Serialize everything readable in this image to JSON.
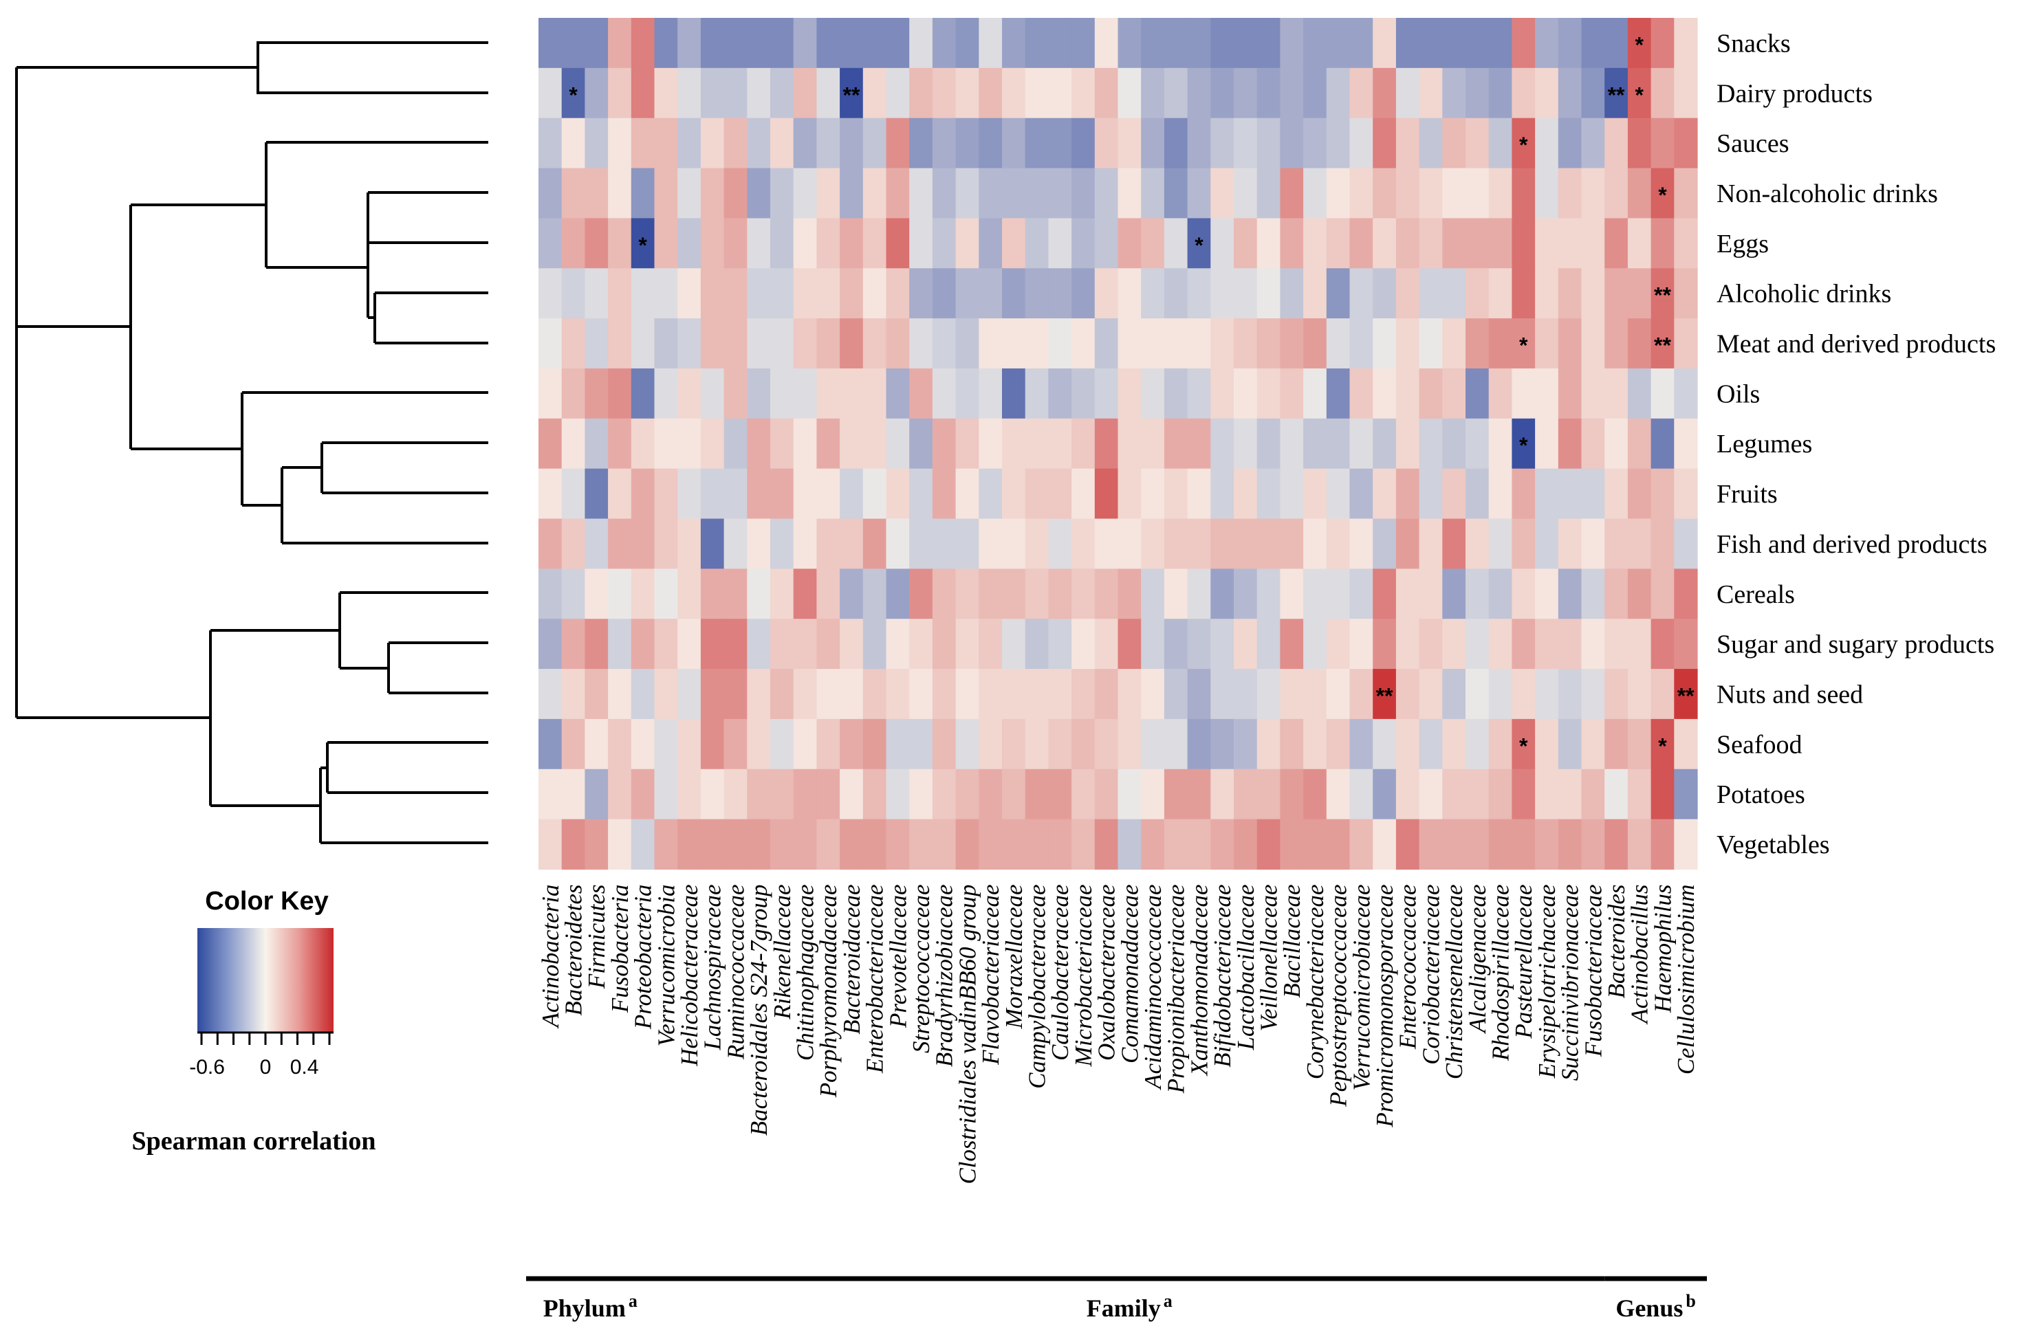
{
  "chart_data": {
    "type": "heatmap",
    "title": "",
    "rows": [
      "Snacks",
      "Dairy products",
      "Sauces",
      "Non-alcoholic drinks",
      "Eggs",
      "Alcoholic drinks",
      "Meat and derived products",
      "Oils",
      "Legumes",
      "Fruits",
      "Fish and derived products",
      "Cereals",
      "Sugar and sugary products",
      "Nuts and seed",
      "Seafood",
      "Potatoes",
      "Vegetables"
    ],
    "columns": [
      "Actinobacteria",
      "Bacteroidetes",
      "Firmicutes",
      "Fusobacteria",
      "Proteobacteria",
      "Verrucomicrobia",
      "Helicobacteraceae",
      "Lachnospiraceae",
      "Ruminococcaceae",
      "Bacteroidales S24-7group",
      "Rikenellaceae",
      "Chitinophagaceae",
      "Porphyromonadaceae",
      "Bacteroidaceae",
      "Enterobacteriaceae",
      "Prevotellaceae",
      "Streptococcaceae",
      "Bradyrhizobiaceae",
      "Clostridiales vadinBB60 group",
      "Flavobacteriaceae",
      "Moraxellaceae",
      "Campylobacteraceae",
      "Caulobacteraceae",
      "Microbacteriaceae",
      "Oxalobacteraceae",
      "Comamonadaceae",
      "Acidaminococcaceae",
      "Propionibacteriaceae",
      "Xanthomonadaceae",
      "Bifidobacteriaceae",
      "Lactobacillaceae",
      "Veillonellaceae",
      "Bacillaceae",
      "Corynebacteriaceae",
      "Peptostreptococcaceae",
      "Verrucomicrobiaceae",
      "Promicromonosporaceae",
      "Enterococcaceae",
      "Coriobacteriaceae",
      "Christensenellaceae",
      "Alcaligenaceae",
      "Rhodospirillaceae",
      "Pasteurellaceae",
      "Erysipelotrichaceae",
      "Succinivibrionaceae",
      "Fusobacteriaceae",
      "Bacteroides",
      "Actinobacillus",
      "Haemophilus",
      "Cellulosimicrobium"
    ],
    "values": [
      [
        -0.45,
        -0.45,
        -0.45,
        0.25,
        0.4,
        -0.45,
        -0.3,
        -0.45,
        -0.45,
        -0.45,
        -0.45,
        -0.3,
        -0.45,
        -0.45,
        -0.45,
        -0.45,
        -0.1,
        -0.35,
        -0.4,
        -0.1,
        -0.35,
        -0.4,
        -0.4,
        -0.4,
        0.05,
        -0.35,
        -0.4,
        -0.4,
        -0.4,
        -0.45,
        -0.45,
        -0.45,
        -0.3,
        -0.35,
        -0.35,
        -0.35,
        0.1,
        -0.45,
        -0.45,
        -0.45,
        -0.45,
        -0.45,
        0.4,
        -0.3,
        -0.35,
        -0.45,
        -0.45,
        0.55,
        0.4,
        0.1
      ],
      [
        -0.1,
        -0.6,
        -0.3,
        0.15,
        0.4,
        0.1,
        -0.1,
        -0.2,
        -0.2,
        -0.1,
        -0.2,
        0.2,
        -0.1,
        -0.7,
        0.1,
        -0.1,
        0.2,
        0.15,
        0.1,
        0.2,
        0.1,
        0.05,
        0.05,
        0.1,
        0.2,
        -0.05,
        -0.25,
        -0.2,
        -0.3,
        -0.35,
        -0.3,
        -0.35,
        -0.3,
        -0.35,
        -0.2,
        0.15,
        0.35,
        -0.1,
        0.1,
        -0.25,
        -0.3,
        -0.35,
        0.15,
        0.1,
        -0.3,
        -0.4,
        -0.65,
        0.5,
        0.2,
        0.1
      ],
      [
        -0.2,
        0.05,
        -0.2,
        0.05,
        0.2,
        0.2,
        -0.2,
        0.1,
        0.2,
        -0.2,
        0.1,
        -0.3,
        -0.2,
        -0.3,
        -0.2,
        0.35,
        -0.4,
        -0.3,
        -0.35,
        -0.4,
        -0.3,
        -0.4,
        -0.4,
        -0.45,
        0.15,
        0.1,
        -0.3,
        -0.45,
        -0.3,
        -0.2,
        -0.15,
        -0.2,
        -0.3,
        -0.25,
        -0.2,
        -0.1,
        0.4,
        0.15,
        -0.2,
        0.2,
        0.15,
        -0.2,
        0.5,
        -0.1,
        -0.35,
        -0.25,
        0.15,
        0.45,
        0.35,
        0.4
      ],
      [
        -0.3,
        0.2,
        0.2,
        0.05,
        -0.4,
        0.2,
        -0.1,
        0.2,
        0.3,
        -0.35,
        -0.2,
        -0.1,
        0.1,
        -0.3,
        0.1,
        0.25,
        -0.1,
        -0.25,
        -0.15,
        -0.25,
        -0.25,
        -0.25,
        -0.25,
        -0.3,
        -0.2,
        0.05,
        -0.2,
        -0.4,
        -0.25,
        0.1,
        -0.1,
        -0.2,
        0.35,
        -0.1,
        0.05,
        0.1,
        0.2,
        0.15,
        0.1,
        0.05,
        0.05,
        0.1,
        0.45,
        -0.1,
        0.15,
        0.1,
        0.15,
        0.3,
        0.5,
        0.2
      ],
      [
        -0.25,
        0.25,
        0.35,
        0.2,
        -0.7,
        0.2,
        -0.2,
        0.2,
        0.25,
        -0.1,
        -0.2,
        0.05,
        0.15,
        0.25,
        0.15,
        0.45,
        -0.1,
        -0.2,
        0.1,
        -0.3,
        0.15,
        -0.2,
        -0.1,
        -0.25,
        -0.2,
        0.25,
        0.2,
        -0.1,
        -0.6,
        -0.1,
        0.2,
        0.05,
        0.25,
        0.1,
        0.15,
        0.25,
        0.1,
        0.2,
        0.15,
        0.25,
        0.25,
        0.25,
        0.45,
        0.1,
        0.1,
        0.1,
        0.35,
        0.1,
        0.35,
        0.15
      ],
      [
        -0.1,
        -0.15,
        -0.1,
        0.15,
        -0.1,
        -0.1,
        0.05,
        0.2,
        0.2,
        -0.15,
        -0.15,
        0.1,
        0.1,
        0.2,
        0.05,
        0.15,
        -0.3,
        -0.35,
        -0.25,
        -0.25,
        -0.35,
        -0.3,
        -0.3,
        -0.35,
        0.1,
        0.05,
        -0.15,
        -0.2,
        -0.15,
        -0.1,
        -0.1,
        -0.05,
        -0.2,
        0.1,
        -0.4,
        -0.15,
        -0.2,
        0.15,
        -0.15,
        -0.15,
        0.15,
        0.1,
        0.45,
        0.1,
        0.2,
        0.1,
        0.25,
        0.25,
        0.45,
        0.2
      ],
      [
        -0.05,
        0.15,
        -0.15,
        0.15,
        -0.1,
        -0.2,
        -0.15,
        0.2,
        0.2,
        -0.1,
        -0.1,
        0.15,
        0.2,
        0.35,
        0.15,
        0.2,
        -0.1,
        -0.15,
        -0.2,
        0.05,
        0.05,
        0.05,
        -0.05,
        0.05,
        -0.2,
        0.05,
        0.05,
        0.05,
        0.05,
        0.1,
        0.15,
        0.2,
        0.25,
        0.3,
        -0.1,
        -0.15,
        -0.05,
        0.1,
        -0.05,
        0.1,
        0.3,
        0.35,
        0.35,
        0.15,
        0.25,
        0.1,
        0.25,
        0.35,
        0.45,
        0.15
      ],
      [
        0.05,
        0.2,
        0.3,
        0.35,
        -0.5,
        -0.1,
        0.1,
        -0.1,
        0.2,
        -0.2,
        -0.1,
        -0.1,
        0.1,
        0.1,
        0.1,
        -0.3,
        0.25,
        -0.1,
        -0.15,
        -0.1,
        -0.55,
        -0.15,
        -0.25,
        -0.2,
        -0.15,
        0.1,
        -0.1,
        -0.2,
        -0.15,
        0.1,
        0.05,
        0.1,
        0.15,
        -0.05,
        -0.45,
        0.15,
        0.05,
        0.1,
        0.2,
        0.15,
        -0.45,
        0.15,
        0.05,
        0.05,
        0.25,
        0.1,
        0.1,
        -0.2,
        -0.05,
        -0.15
      ],
      [
        0.3,
        0.05,
        -0.2,
        0.25,
        0.1,
        0.05,
        0.05,
        0.1,
        -0.2,
        0.25,
        0.15,
        0.05,
        0.25,
        0.1,
        0.1,
        -0.1,
        -0.3,
        0.25,
        0.15,
        0.05,
        0.1,
        0.1,
        0.1,
        0.15,
        0.4,
        0.1,
        0.1,
        0.25,
        0.25,
        -0.15,
        -0.1,
        -0.2,
        -0.1,
        -0.2,
        -0.2,
        -0.1,
        -0.2,
        0.1,
        -0.15,
        -0.2,
        -0.15,
        0.05,
        -0.7,
        0.05,
        0.35,
        0.15,
        0.05,
        0.2,
        -0.5,
        0.05
      ],
      [
        0.05,
        -0.1,
        -0.5,
        0.1,
        0.25,
        0.15,
        -0.1,
        -0.15,
        -0.15,
        0.25,
        0.25,
        0.05,
        0.05,
        -0.15,
        -0.05,
        0.1,
        -0.15,
        0.25,
        0.05,
        -0.15,
        0.1,
        0.15,
        0.15,
        0.05,
        0.5,
        0.1,
        0.05,
        0.1,
        0.05,
        -0.15,
        0.1,
        -0.15,
        -0.1,
        0.1,
        -0.1,
        -0.25,
        0.1,
        0.25,
        -0.15,
        0.15,
        -0.2,
        0.05,
        0.25,
        -0.15,
        -0.15,
        -0.15,
        0.1,
        0.25,
        0.2,
        0.1
      ],
      [
        0.25,
        0.15,
        -0.15,
        0.25,
        0.25,
        0.15,
        0.1,
        -0.55,
        -0.1,
        0.05,
        -0.15,
        0.05,
        0.15,
        0.15,
        0.3,
        -0.05,
        -0.15,
        -0.15,
        -0.15,
        0.05,
        0.05,
        0.1,
        -0.1,
        0.1,
        0.05,
        0.05,
        0.1,
        0.15,
        0.15,
        0.2,
        0.2,
        0.2,
        0.2,
        0.05,
        0.1,
        0.05,
        -0.2,
        0.3,
        0.1,
        0.4,
        0.1,
        -0.1,
        0.2,
        -0.15,
        0.1,
        0.05,
        0.15,
        0.15,
        0.2,
        -0.15
      ],
      [
        -0.2,
        -0.15,
        0.05,
        -0.05,
        0.1,
        -0.05,
        0.1,
        0.25,
        0.25,
        -0.05,
        0.1,
        0.4,
        0.15,
        -0.3,
        -0.2,
        -0.35,
        0.35,
        0.2,
        0.15,
        0.2,
        0.2,
        0.15,
        0.2,
        0.15,
        0.2,
        0.25,
        -0.15,
        0.05,
        -0.1,
        -0.35,
        -0.25,
        -0.15,
        0.05,
        -0.1,
        -0.1,
        -0.15,
        0.4,
        0.1,
        0.1,
        -0.35,
        -0.15,
        -0.2,
        0.1,
        0.05,
        -0.3,
        -0.15,
        0.2,
        0.3,
        0.2,
        0.4
      ],
      [
        -0.3,
        0.25,
        0.35,
        -0.15,
        0.25,
        0.15,
        0.05,
        0.4,
        0.4,
        -0.15,
        0.15,
        0.15,
        0.2,
        0.1,
        -0.2,
        0.05,
        0.1,
        0.2,
        0.1,
        0.15,
        -0.1,
        -0.2,
        -0.15,
        0.05,
        0.1,
        0.4,
        -0.15,
        -0.25,
        -0.2,
        -0.15,
        0.1,
        -0.15,
        0.35,
        -0.1,
        0.1,
        0.05,
        0.35,
        0.1,
        0.15,
        0.1,
        -0.1,
        0.1,
        0.25,
        0.15,
        0.15,
        0.05,
        0.1,
        0.1,
        0.4,
        0.35
      ],
      [
        -0.1,
        0.1,
        0.2,
        0.05,
        -0.15,
        0.1,
        -0.1,
        0.35,
        0.35,
        0.1,
        0.2,
        0.1,
        0.05,
        0.05,
        0.15,
        0.1,
        0.05,
        0.15,
        0.05,
        0.1,
        0.1,
        0.1,
        0.1,
        0.15,
        0.2,
        0.1,
        0.05,
        -0.2,
        -0.3,
        -0.15,
        -0.15,
        -0.1,
        0.1,
        0.1,
        0.05,
        0.15,
        0.65,
        0.15,
        0.1,
        -0.2,
        -0.05,
        -0.1,
        0.1,
        -0.1,
        -0.15,
        -0.1,
        0.15,
        0.1,
        0.15,
        0.65
      ],
      [
        -0.4,
        0.2,
        0.05,
        0.15,
        0.05,
        -0.1,
        0.1,
        0.35,
        0.25,
        0.1,
        -0.1,
        0.05,
        0.15,
        0.25,
        0.3,
        -0.15,
        -0.15,
        0.2,
        -0.1,
        0.1,
        0.15,
        0.1,
        0.15,
        0.2,
        0.15,
        0.1,
        -0.1,
        -0.1,
        -0.35,
        -0.3,
        -0.25,
        0.1,
        0.2,
        0.1,
        0.15,
        -0.25,
        -0.1,
        0.1,
        -0.15,
        0.1,
        -0.1,
        0.15,
        0.45,
        0.1,
        -0.2,
        0.1,
        0.25,
        0.2,
        0.55,
        0.1
      ],
      [
        0.05,
        0.05,
        -0.3,
        0.15,
        0.25,
        -0.1,
        0.1,
        0.05,
        0.1,
        0.2,
        0.2,
        0.25,
        0.25,
        0.05,
        0.2,
        -0.1,
        0.05,
        0.15,
        0.2,
        0.25,
        0.2,
        0.3,
        0.3,
        0.15,
        0.2,
        -0.05,
        0.05,
        0.3,
        0.3,
        0.1,
        0.2,
        0.2,
        0.3,
        0.35,
        0.05,
        -0.1,
        -0.35,
        0.1,
        0.05,
        0.15,
        0.15,
        0.2,
        0.4,
        0.1,
        0.1,
        0.2,
        -0.05,
        0.15,
        0.55,
        -0.4
      ],
      [
        0.1,
        0.35,
        0.3,
        0.05,
        -0.15,
        0.25,
        0.3,
        0.3,
        0.3,
        0.3,
        0.25,
        0.25,
        0.2,
        0.3,
        0.3,
        0.25,
        0.2,
        0.2,
        0.3,
        0.25,
        0.25,
        0.25,
        0.25,
        0.2,
        0.35,
        -0.2,
        0.25,
        0.2,
        0.2,
        0.25,
        0.3,
        0.4,
        0.3,
        0.3,
        0.3,
        0.2,
        0.05,
        0.4,
        0.25,
        0.25,
        0.25,
        0.3,
        0.3,
        0.25,
        0.3,
        0.25,
        0.35,
        0.2,
        0.35,
        0.05
      ]
    ],
    "significance": [
      {
        "row": 0,
        "col": 47,
        "mark": "*"
      },
      {
        "row": 1,
        "col": 1,
        "mark": "*"
      },
      {
        "row": 1,
        "col": 13,
        "mark": "**"
      },
      {
        "row": 1,
        "col": 46,
        "mark": "**"
      },
      {
        "row": 1,
        "col": 47,
        "mark": "*"
      },
      {
        "row": 2,
        "col": 42,
        "mark": "*"
      },
      {
        "row": 3,
        "col": 48,
        "mark": "*"
      },
      {
        "row": 4,
        "col": 4,
        "mark": "*"
      },
      {
        "row": 4,
        "col": 28,
        "mark": "*"
      },
      {
        "row": 5,
        "col": 48,
        "mark": "**"
      },
      {
        "row": 6,
        "col": 42,
        "mark": "*"
      },
      {
        "row": 6,
        "col": 48,
        "mark": "**"
      },
      {
        "row": 8,
        "col": 42,
        "mark": "*"
      },
      {
        "row": 13,
        "col": 36,
        "mark": "**"
      },
      {
        "row": 13,
        "col": 49,
        "mark": "**"
      },
      {
        "row": 14,
        "col": 42,
        "mark": "*"
      },
      {
        "row": 14,
        "col": 48,
        "mark": "*"
      }
    ],
    "color_scale": {
      "min": -0.7,
      "max": 0.7,
      "low": "#3a4fa0",
      "mid": "#f8f4ec",
      "high": "#c8282b"
    },
    "color_key": {
      "title": "Color Key",
      "ticks": [
        "-0.6",
        "0",
        "0.4"
      ],
      "tick_values": [
        -0.6,
        0,
        0.4
      ],
      "label": "Spearman correlation"
    },
    "groups": [
      {
        "name": "Phylum",
        "sup": "a",
        "first_col": 0,
        "last_col": 4
      },
      {
        "name": "Family",
        "sup": "a",
        "first_col": 5,
        "last_col": 45
      },
      {
        "name": "Genus",
        "sup": "b",
        "first_col": 46,
        "last_col": 49
      }
    ]
  }
}
